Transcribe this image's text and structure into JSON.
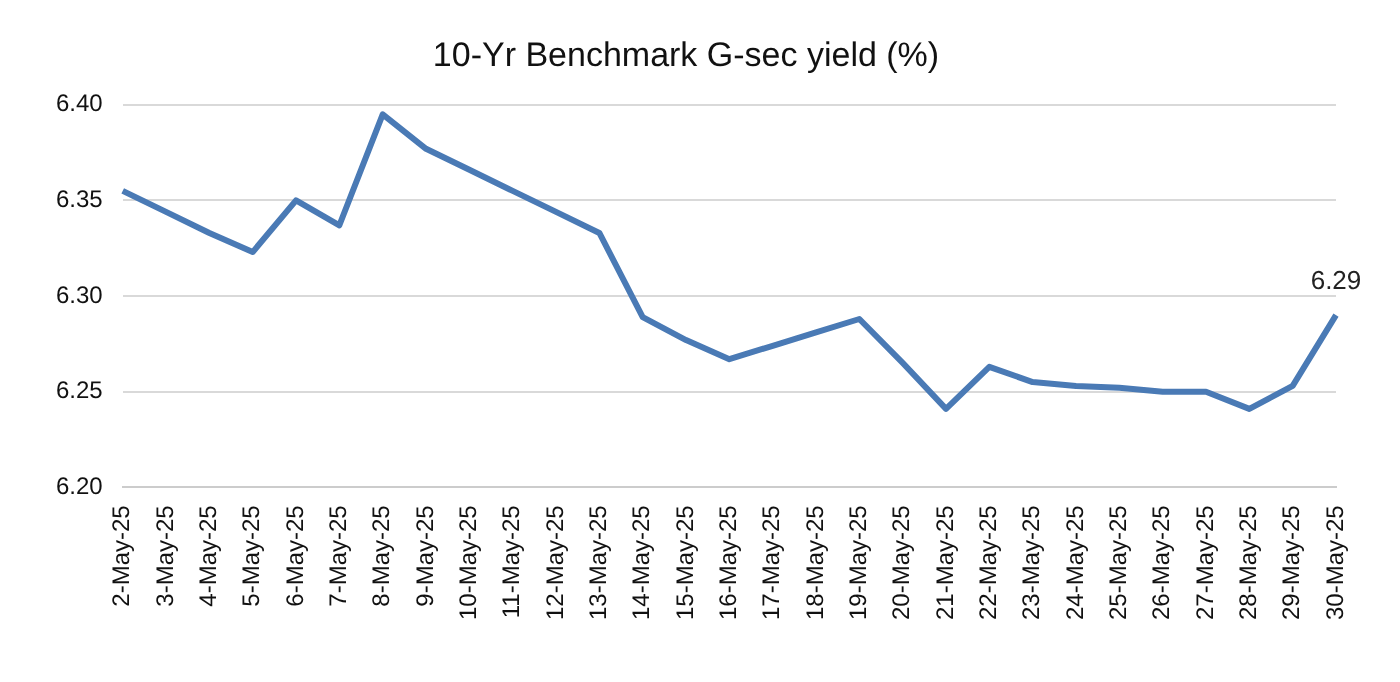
{
  "chart_data": {
    "type": "line",
    "title": "10-Yr Benchmark G-sec yield (%)",
    "categories": [
      "2-May-25",
      "3-May-25",
      "4-May-25",
      "5-May-25",
      "6-May-25",
      "7-May-25",
      "8-May-25",
      "9-May-25",
      "10-May-25",
      "11-May-25",
      "12-May-25",
      "13-May-25",
      "14-May-25",
      "15-May-25",
      "16-May-25",
      "17-May-25",
      "18-May-25",
      "19-May-25",
      "20-May-25",
      "21-May-25",
      "22-May-25",
      "23-May-25",
      "24-May-25",
      "25-May-25",
      "26-May-25",
      "27-May-25",
      "28-May-25",
      "29-May-25",
      "30-May-25"
    ],
    "series": [
      {
        "color": "#4a7ab5",
        "values": [
          6.355,
          6.344,
          6.333,
          6.323,
          6.35,
          6.337,
          6.395,
          6.377,
          6.366,
          6.355,
          6.344,
          6.333,
          6.289,
          6.277,
          6.267,
          6.274,
          6.281,
          6.288,
          6.265,
          6.241,
          6.263,
          6.255,
          6.253,
          6.252,
          6.25,
          6.25,
          6.241,
          6.253,
          6.29
        ],
        "value_labels": [
          null,
          null,
          null,
          null,
          null,
          null,
          null,
          null,
          null,
          null,
          null,
          null,
          null,
          null,
          null,
          null,
          null,
          null,
          null,
          null,
          null,
          null,
          null,
          null,
          null,
          null,
          null,
          null,
          "6.29"
        ]
      }
    ],
    "ylim": [
      6.2,
      6.4
    ],
    "yticks": [
      {
        "value": 6.2,
        "label": "6.20"
      },
      {
        "value": 6.25,
        "label": "6.25"
      },
      {
        "value": 6.3,
        "label": "6.30"
      },
      {
        "value": 6.35,
        "label": "6.35"
      },
      {
        "value": 6.4,
        "label": "6.40"
      }
    ],
    "grid": "y",
    "legend": false,
    "marker": "none",
    "line_style": "solid"
  }
}
